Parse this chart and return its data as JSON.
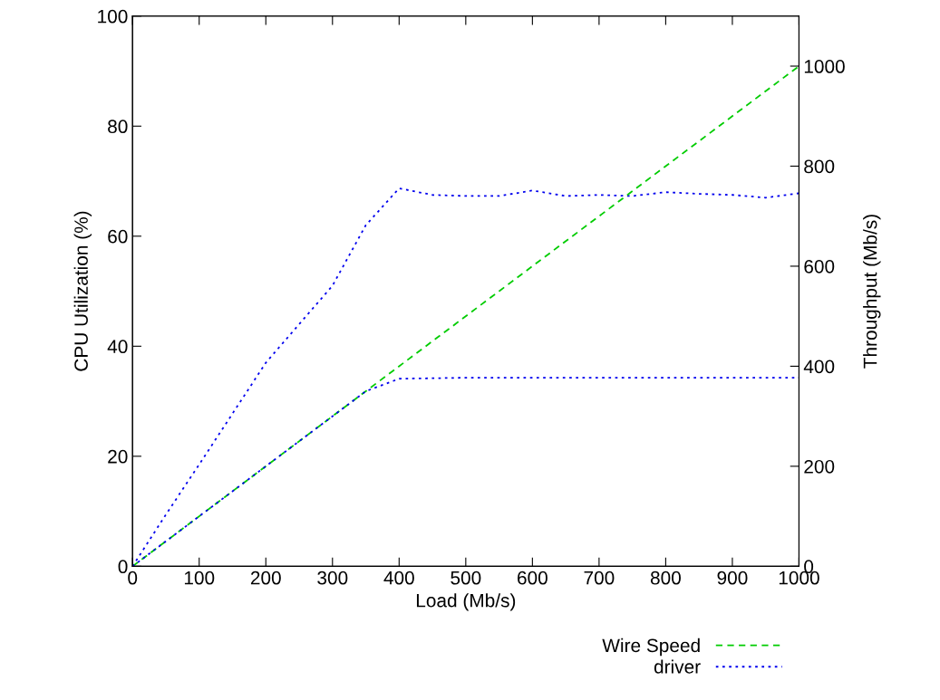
{
  "chart_data": {
    "type": "line",
    "xlabel": "Load (Mb/s)",
    "ylabel": "CPU Utilization (%)",
    "y2label": "Throughput (Mb/s)",
    "xlim": [
      0,
      1000
    ],
    "xticks": [
      0,
      100,
      200,
      300,
      400,
      500,
      600,
      700,
      800,
      900,
      1000
    ],
    "ylim": [
      0,
      100
    ],
    "yticks": [
      0,
      20,
      40,
      60,
      80,
      100
    ],
    "y2lim": [
      0,
      1100
    ],
    "y2ticks": [
      0,
      200,
      400,
      600,
      800,
      1000
    ],
    "grid": false,
    "legend": "bottom",
    "marker": "none",
    "series": [
      {
        "name": "Wire Speed",
        "color": "#00cc00",
        "line_style": "dashed",
        "axis": "y2",
        "x": [
          0,
          1000
        ],
        "values": [
          0,
          1000
        ]
      },
      {
        "name": "driver",
        "color": "#0000ee",
        "line_style": "dotted",
        "axis": "y",
        "x": [
          0,
          50,
          100,
          200,
          300,
          350,
          400,
          450,
          500,
          550,
          600,
          650,
          700,
          750,
          800,
          850,
          900,
          950,
          1000
        ],
        "values": [
          0,
          9.4,
          18.5,
          37,
          51,
          62,
          68.7,
          67.5,
          67.3,
          67.3,
          68.3,
          67.3,
          67.5,
          67.3,
          68,
          67.7,
          67.5,
          67,
          67.8
        ]
      },
      {
        "color": "#0000ee",
        "line_style": "dotted",
        "axis": "y2",
        "x": [
          0,
          100,
          200,
          300,
          350,
          400,
          500,
          600,
          700,
          800,
          900,
          1000
        ],
        "values": [
          0,
          100,
          200,
          300,
          350,
          375,
          377,
          377,
          377,
          377,
          377,
          377
        ]
      }
    ]
  }
}
